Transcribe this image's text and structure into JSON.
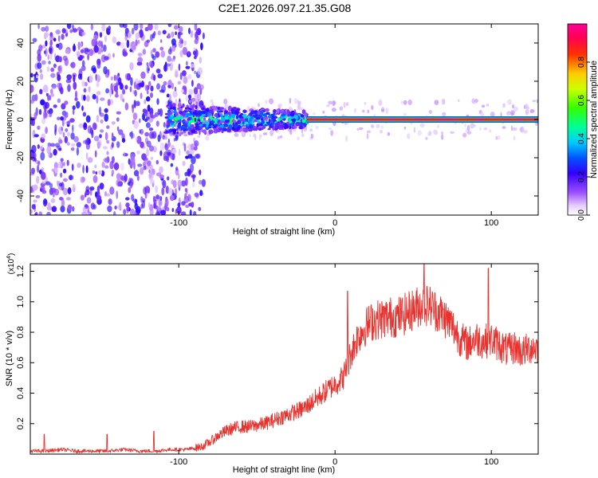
{
  "title": "C2E1.2026.097.21.35.G08",
  "chart_data": [
    {
      "type": "heatmap",
      "title": "C2E1.2026.097.21.35.G08",
      "xlabel": "Height of straight line (km)",
      "ylabel": "Frequency (Hz)",
      "xlim": [
        -195,
        130
      ],
      "ylim": [
        -50,
        50
      ],
      "xticks": [
        -100,
        0,
        100
      ],
      "xtick_labels": [
        "-100",
        "0",
        "100"
      ],
      "yticks": [
        -40,
        -20,
        0,
        20,
        40
      ],
      "ytick_labels": [
        "-40",
        "-20",
        "0",
        "20",
        "40"
      ],
      "colorbar": {
        "label": "Normalized spectral amplitude",
        "range": [
          0,
          1
        ],
        "ticks": [
          0.0,
          0.2,
          0.4,
          0.6,
          0.8
        ],
        "tick_labels": [
          "0.0",
          "0.2",
          "0.4",
          "0.6",
          "0.8"
        ]
      },
      "features": [
        {
          "region": "noise",
          "x_range": [
            -195,
            -90
          ],
          "freq_range": [
            -50,
            50
          ],
          "amplitude": [
            0.05,
            0.25
          ]
        },
        {
          "region": "broadening",
          "x_range": [
            -108,
            -18
          ],
          "freq_range": [
            -8,
            8
          ],
          "amplitude": [
            0.1,
            0.6
          ]
        },
        {
          "region": "carrier",
          "x_range": [
            -18,
            130
          ],
          "freq": 0,
          "amplitude": [
            0.8,
            1.0
          ]
        }
      ]
    },
    {
      "type": "line",
      "xlabel": "Height of straight line (km)",
      "ylabel": "SNR (10 * v/v)",
      "scale_label": "(x10",
      "scale_exponent": "4",
      "scale_suffix": ")",
      "xlim": [
        -195,
        130
      ],
      "ylim": [
        0,
        1.25
      ],
      "xticks": [
        -100,
        0,
        100
      ],
      "xtick_labels": [
        "-100",
        "0",
        "100"
      ],
      "yticks": [
        0.2,
        0.4,
        0.6,
        0.8,
        1.0,
        1.2
      ],
      "ytick_labels": [
        "0.2",
        "0.4",
        "0.6",
        "0.8",
        "1.0",
        "1.2"
      ],
      "color": "#e8322e",
      "series": [
        {
          "name": "SNR",
          "x": [
            -195,
            -185,
            -175,
            -165,
            -155,
            -145,
            -135,
            -125,
            -115,
            -105,
            -95,
            -90,
            -85,
            -80,
            -75,
            -70,
            -65,
            -60,
            -55,
            -50,
            -45,
            -40,
            -35,
            -30,
            -25,
            -20,
            -15,
            -10,
            -5,
            0,
            5,
            8,
            10,
            15,
            20,
            25,
            30,
            35,
            40,
            45,
            50,
            55,
            60,
            65,
            70,
            75,
            80,
            85,
            90,
            95,
            100,
            105,
            110,
            115,
            120,
            125,
            130
          ],
          "y": [
            0.02,
            0.02,
            0.03,
            0.02,
            0.02,
            0.02,
            0.03,
            0.02,
            0.02,
            0.03,
            0.03,
            0.04,
            0.05,
            0.08,
            0.12,
            0.15,
            0.17,
            0.18,
            0.18,
            0.19,
            0.2,
            0.22,
            0.24,
            0.26,
            0.28,
            0.3,
            0.34,
            0.38,
            0.42,
            0.46,
            0.5,
            0.58,
            0.66,
            0.78,
            0.84,
            0.88,
            0.89,
            0.9,
            0.9,
            0.92,
            0.95,
            0.98,
            0.98,
            0.94,
            0.9,
            0.84,
            0.76,
            0.72,
            0.76,
            0.74,
            0.75,
            0.72,
            0.68,
            0.7,
            0.67,
            0.7,
            0.7
          ]
        }
      ],
      "spikes": [
        {
          "x": -186,
          "y": 0.13
        },
        {
          "x": -146,
          "y": 0.13
        },
        {
          "x": -116,
          "y": 0.15
        },
        {
          "x": 8,
          "y": 1.07
        },
        {
          "x": 57,
          "y": 1.25
        },
        {
          "x": 98,
          "y": 1.22
        }
      ]
    }
  ]
}
